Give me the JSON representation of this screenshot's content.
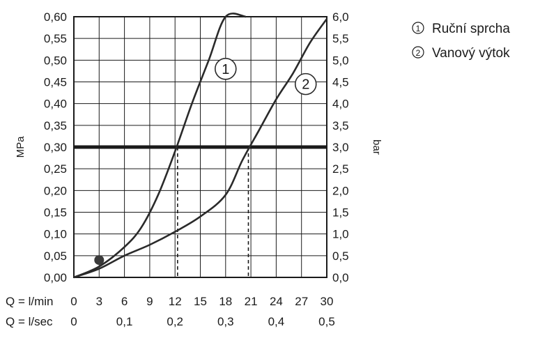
{
  "chart_data": {
    "type": "line",
    "left_axis": {
      "label": "MPa",
      "ticks": [
        "0,00",
        "0,05",
        "0,10",
        "0,15",
        "0,20",
        "0,25",
        "0,30",
        "0,35",
        "0,40",
        "0,45",
        "0,50",
        "0,55",
        "0,60"
      ],
      "ylim": [
        0,
        0.6
      ]
    },
    "right_axis": {
      "label": "bar",
      "ticks": [
        "0,0",
        "0,5",
        "1,0",
        "1,5",
        "2,0",
        "2,5",
        "3,0",
        "3,5",
        "4,0",
        "4,5",
        "5,0",
        "5,5",
        "6,0"
      ],
      "ylim": [
        0,
        6
      ]
    },
    "x_axis": {
      "xlim": [
        0,
        30
      ],
      "row1_label": "Q = l/min",
      "row1_ticks": [
        {
          "x": 0,
          "label": "0"
        },
        {
          "x": 3,
          "label": "3"
        },
        {
          "x": 6,
          "label": "6"
        },
        {
          "x": 9,
          "label": "9"
        },
        {
          "x": 12,
          "label": "12"
        },
        {
          "x": 15,
          "label": "15"
        },
        {
          "x": 18,
          "label": "18"
        },
        {
          "x": 21,
          "label": "21"
        },
        {
          "x": 24,
          "label": "24"
        },
        {
          "x": 27,
          "label": "27"
        },
        {
          "x": 30,
          "label": "30"
        }
      ],
      "row2_label": "Q = l/sec",
      "row2_ticks": [
        {
          "x": 0,
          "label": "0"
        },
        {
          "x": 6,
          "label": "0,1"
        },
        {
          "x": 12,
          "label": "0,2"
        },
        {
          "x": 18,
          "label": "0,3"
        },
        {
          "x": 24,
          "label": "0,4"
        },
        {
          "x": 30,
          "label": "0,5"
        }
      ]
    },
    "series": [
      {
        "name": "Ruční sprcha",
        "marker": "1",
        "x": [
          0,
          3,
          6,
          8,
          10,
          12,
          14,
          16,
          18,
          20.4
        ],
        "y": [
          0,
          0.025,
          0.07,
          0.115,
          0.19,
          0.29,
          0.4,
          0.5,
          0.6,
          0.6
        ],
        "label_at": [
          18,
          0.48
        ]
      },
      {
        "name": "Vanový výtok",
        "marker": "2",
        "x": [
          0,
          3,
          6,
          9,
          12,
          15,
          18,
          20,
          22,
          24,
          26,
          28,
          30
        ],
        "y": [
          0,
          0.02,
          0.05,
          0.075,
          0.105,
          0.14,
          0.19,
          0.27,
          0.34,
          0.41,
          0.47,
          0.54,
          0.595
        ],
        "label_at": [
          27.5,
          0.445
        ]
      }
    ],
    "highlight_level": 0.3,
    "dashed_drops_x": [
      12.3,
      20.7
    ],
    "marker_point": [
      3,
      0.04
    ],
    "grid": true,
    "legend_position": "top-right"
  }
}
